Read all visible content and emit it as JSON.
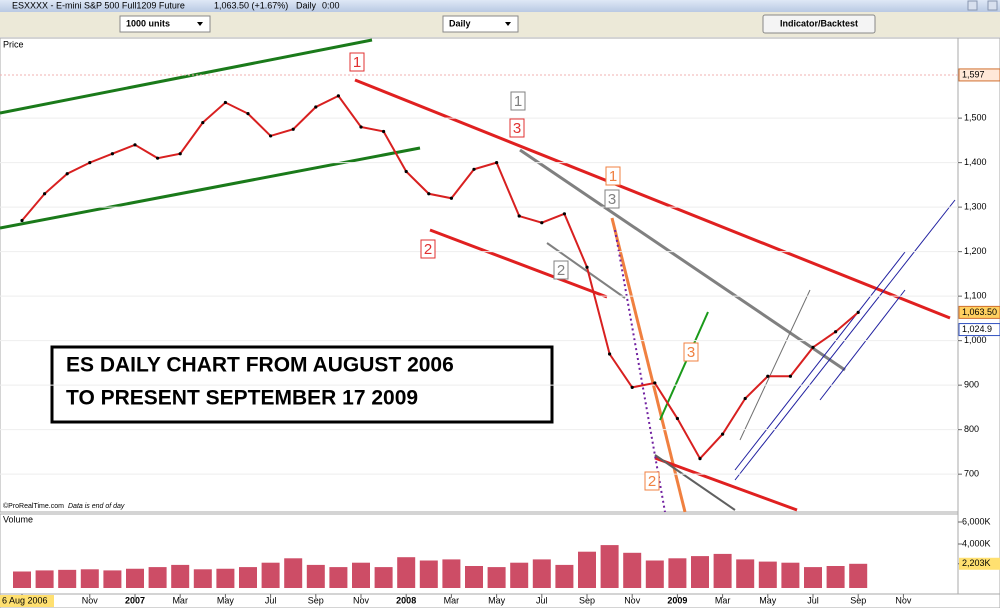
{
  "window": {
    "title": "ESXXXX - E-mini S&P 500 Full1209 Future",
    "quote": "1,063.50 (+1.67%)",
    "period": "Daily",
    "time": "0:00"
  },
  "toolbar": {
    "units": "1000 units",
    "timeframe": "Daily",
    "button": "Indicator/Backtest"
  },
  "source": "©ProRealTime.com",
  "source_note": "Data is end of day",
  "annotation": [
    "ES DAILY CHART FROM AUGUST 2006",
    "TO PRESENT SEPTEMBER 17 2009"
  ],
  "wave_labels": [
    "1",
    "1",
    "3",
    "2",
    "2",
    "1",
    "3",
    "3",
    "2"
  ],
  "chart_data": [
    {
      "type": "line",
      "title": "Price",
      "color": "#d82020",
      "categories": [
        "6 Aug 2006",
        null,
        null,
        "Nov",
        null,
        "2007",
        null,
        "Mar",
        null,
        "May",
        null,
        "Jul",
        null,
        "Sep",
        null,
        "Nov",
        null,
        "2008",
        null,
        "Mar",
        null,
        "May",
        null,
        "Jul",
        null,
        "Sep",
        null,
        "Nov",
        null,
        "2009",
        null,
        "Mar",
        null,
        "May",
        null,
        "Jul",
        null,
        "Sep",
        null,
        "Nov"
      ],
      "values": [
        1270,
        1330,
        1375,
        1400,
        1420,
        1440,
        1410,
        1420,
        1490,
        1535,
        1510,
        1460,
        1475,
        1525,
        1550,
        1480,
        1470,
        1380,
        1330,
        1320,
        1385,
        1400,
        1280,
        1265,
        1285,
        1165,
        970,
        895,
        905,
        825,
        735,
        790,
        870,
        920,
        920,
        985,
        1020,
        1063.5,
        null,
        null
      ],
      "ylim": [
        615,
        1680
      ],
      "yticks": [
        {
          "value": 700,
          "label": "700"
        },
        {
          "value": 800,
          "label": "800"
        },
        {
          "value": 900,
          "label": "900"
        },
        {
          "value": 1000,
          "label": "1,000"
        },
        {
          "value": 1100,
          "label": "1,100"
        },
        {
          "value": 1200,
          "label": "1,200"
        },
        {
          "value": 1300,
          "label": "1,300"
        },
        {
          "value": 1400,
          "label": "1,400"
        },
        {
          "value": 1500,
          "label": "1,500"
        }
      ],
      "price_markers": [
        {
          "value": 1597,
          "label": "1,597",
          "color": "#ffe8d8"
        },
        {
          "value": 1063.5,
          "label": "1,063.50",
          "color": "#ffd060"
        },
        {
          "value": 1024.9,
          "label": "1,024.9",
          "color": "#ffffff"
        }
      ],
      "grid": true
    },
    {
      "type": "bar",
      "title": "Volume",
      "color": "#c02040",
      "values": [
        1500,
        1600,
        1650,
        1700,
        1600,
        1750,
        1900,
        2100,
        1700,
        1750,
        1900,
        2300,
        2700,
        2100,
        1900,
        2300,
        1900,
        2800,
        2500,
        2600,
        2000,
        1900,
        2300,
        2600,
        2100,
        3300,
        3900,
        3200,
        2500,
        2700,
        2900,
        3100,
        2600,
        2400,
        2300,
        1900,
        2000,
        2200,
        null,
        null
      ],
      "ylim": [
        0,
        6500
      ],
      "yticks": [
        {
          "value": 6000,
          "label": "6,000K"
        },
        {
          "value": 4000,
          "label": "4,000K"
        },
        {
          "value": 2203,
          "label": "2,203K"
        }
      ]
    }
  ]
}
